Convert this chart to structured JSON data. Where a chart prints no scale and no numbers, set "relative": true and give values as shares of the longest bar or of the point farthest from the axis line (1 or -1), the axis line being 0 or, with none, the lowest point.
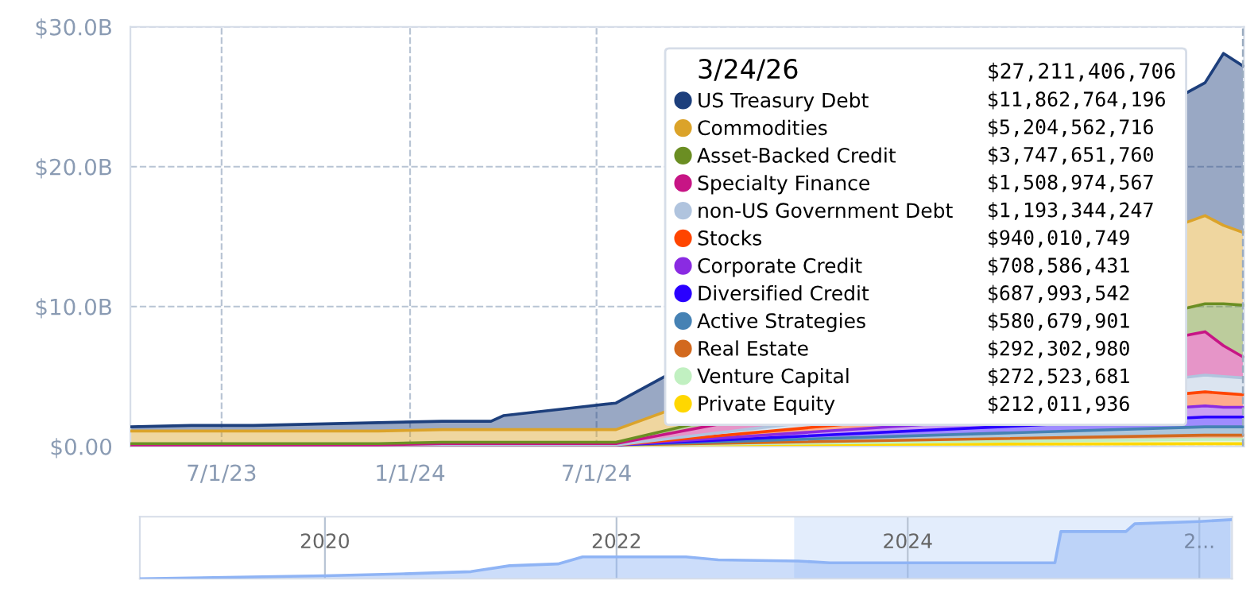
{
  "chart_data": [
    {
      "type": "area",
      "stacked": true,
      "x": [
        "2023-04-03",
        "2023-06-01",
        "2023-08-01",
        "2023-10-01",
        "2023-12-01",
        "2024-02-01",
        "2024-03-20",
        "2024-04-01",
        "2024-06-01",
        "2024-07-20",
        "2026-02-15",
        "2026-03-05",
        "2026-03-24"
      ],
      "series": [
        {
          "name": "Private Equity",
          "color": "#ffd700",
          "values": [
            0.1,
            0.1,
            0.1,
            0.1,
            0.1,
            0.1,
            0.1,
            0.1,
            0.1,
            0.1,
            0.2,
            0.2,
            0.2
          ]
        },
        {
          "name": "Venture Capital",
          "color": "#c1f0c1",
          "values": [
            0,
            0,
            0,
            0,
            0,
            0,
            0,
            0,
            0,
            0,
            0.3,
            0.3,
            0.3
          ]
        },
        {
          "name": "Real Estate",
          "color": "#d2691e",
          "values": [
            0,
            0,
            0,
            0,
            0,
            0,
            0,
            0,
            0,
            0,
            0.3,
            0.3,
            0.3
          ]
        },
        {
          "name": "Active Strategies",
          "color": "#4682b4",
          "values": [
            0,
            0,
            0,
            0,
            0,
            0,
            0,
            0,
            0,
            0,
            0.6,
            0.6,
            0.6
          ]
        },
        {
          "name": "Diversified Credit",
          "color": "#2a00ff",
          "values": [
            0,
            0,
            0,
            0,
            0,
            0,
            0,
            0,
            0,
            0,
            0.7,
            0.7,
            0.7
          ]
        },
        {
          "name": "Corporate Credit",
          "color": "#8a2be2",
          "values": [
            0,
            0,
            0,
            0,
            0,
            0,
            0,
            0,
            0,
            0,
            0.8,
            0.7,
            0.7
          ]
        },
        {
          "name": "Stocks",
          "color": "#ff4500",
          "values": [
            0,
            0,
            0,
            0,
            0,
            0,
            0,
            0,
            0,
            0,
            1.0,
            1.0,
            0.9
          ]
        },
        {
          "name": "non-US Government Debt",
          "color": "#b0c4de",
          "values": [
            0,
            0,
            0,
            0,
            0,
            0,
            0,
            0,
            0,
            0,
            1.2,
            1.2,
            1.2
          ]
        },
        {
          "name": "Specialty Finance",
          "color": "#c71585",
          "values": [
            0,
            0,
            0,
            0,
            0,
            0.1,
            0.1,
            0.1,
            0.1,
            0.1,
            3.1,
            2.2,
            1.5
          ]
        },
        {
          "name": "Asset-Backed Credit",
          "color": "#6b8e23",
          "values": [
            0.1,
            0.1,
            0.1,
            0.1,
            0.1,
            0.1,
            0.1,
            0.1,
            0.1,
            0.1,
            2.0,
            3.0,
            3.7
          ]
        },
        {
          "name": "Commodities",
          "color": "#dba32a",
          "values": [
            0.9,
            0.9,
            0.9,
            0.9,
            0.9,
            0.9,
            0.9,
            0.9,
            0.9,
            0.9,
            6.3,
            5.6,
            5.2
          ]
        },
        {
          "name": "US Treasury Debt",
          "color": "#1d3f7c",
          "values": [
            0.3,
            0.4,
            0.4,
            0.5,
            0.6,
            0.6,
            0.6,
            1.0,
            1.5,
            1.9,
            9.5,
            12.3,
            11.9
          ]
        }
      ],
      "annotations": [
        "3/24/26",
        "$27,211,406,706",
        "$11,862,764,196",
        "$5,204,562,716",
        "$3,747,651,760",
        "$1,508,974,567",
        "$1,193,344,247",
        "$940,010,749",
        "$708,586,431",
        "$687,993,542",
        "$580,679,901",
        "$292,302,980",
        "$272,523,681",
        "$212,011,936"
      ],
      "xlim": [
        "2023-04-03",
        "2026-03-25"
      ],
      "xticks": [
        {
          "value": "2023-07-01",
          "label": "7/1/23"
        },
        {
          "value": "2024-01-01",
          "label": "1/1/24"
        },
        {
          "value": "2024-07-01",
          "label": "7/1/24"
        }
      ],
      "ylim": [
        0,
        30
      ],
      "yticks": [
        {
          "value": 0,
          "label": "$0.00"
        },
        {
          "value": 10,
          "label": "$10.0B"
        },
        {
          "value": 20,
          "label": "$20.0B"
        },
        {
          "value": 30,
          "label": "$30.0B"
        }
      ],
      "ref_lines": [
        {
          "axis": "x",
          "value": "2026-03-24",
          "line_style": "dashed",
          "color": "#9aabbf"
        }
      ],
      "grid": true,
      "line_style": "dashed",
      "legend": "right"
    },
    {
      "type": "area",
      "relative": true,
      "color": "#8fb4f5",
      "x": [
        "2018-09-24",
        "2020-01-01",
        "2020-07-05",
        "2021-01-01",
        "2021-04-08",
        "2021-08-07",
        "2021-10-08",
        "2022-06-24",
        "2022-09-13",
        "2023-04-01",
        "2023-06-20",
        "2025-01-04",
        "2025-01-19",
        "2025-07-01",
        "2025-07-23",
        "2026-01-01",
        "2026-03-20"
      ],
      "values": [
        0,
        0.05,
        0.08,
        0.12,
        0.22,
        0.25,
        0.37,
        0.37,
        0.32,
        0.3,
        0.27,
        0.27,
        0.8,
        0.8,
        0.93,
        0.97,
        1
      ],
      "xlim": [
        "2018-09-24",
        "2026-03-24"
      ],
      "xticks": [
        {
          "value": "2020-01-01",
          "label": "2020"
        },
        {
          "value": "2022-01-01",
          "label": "2022"
        },
        {
          "value": "2024-01-01",
          "label": "2024"
        },
        {
          "value": "2026-01-01",
          "label": "2..."
        }
      ],
      "bands": [
        {
          "axis": "x",
          "from": "2023-03-25",
          "to": "2026-03-24",
          "color": "#e3edfc"
        }
      ],
      "grid": "x",
      "tick_labels": "x"
    }
  ]
}
